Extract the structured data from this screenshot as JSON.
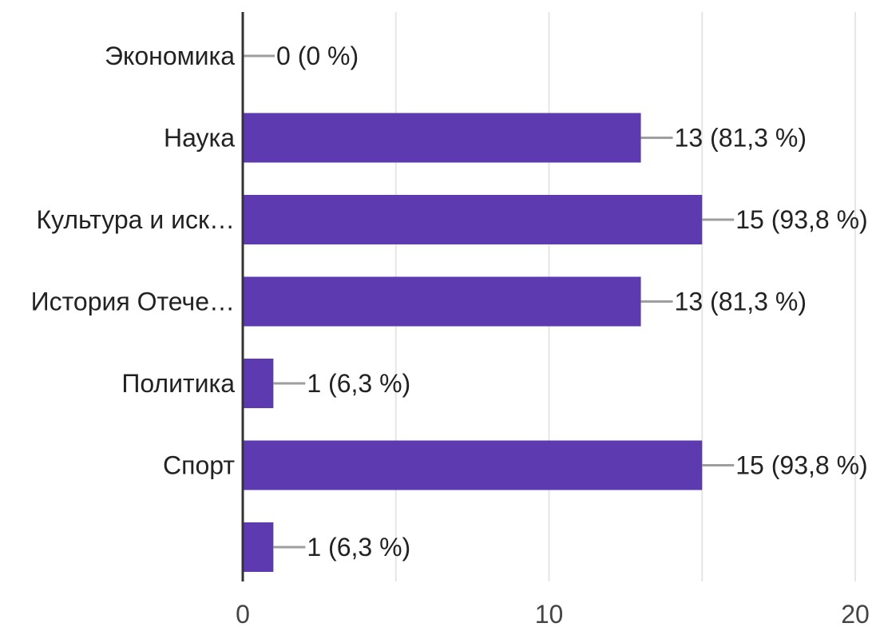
{
  "chart_data": {
    "type": "bar",
    "orientation": "horizontal",
    "categories": [
      "Экономика",
      "Наука",
      "Культура и иск…",
      "История Отече…",
      "Политика",
      "Спорт",
      ""
    ],
    "values": [
      0,
      13,
      15,
      13,
      1,
      15,
      1
    ],
    "data_labels": [
      "0 (0 %)",
      "13 (81,3 %)",
      "15 (93,8 %)",
      "13 (81,3 %)",
      "1 (6,3 %)",
      "15 (93,8 %)",
      "1 (6,3 %)"
    ],
    "xlim": [
      0,
      20
    ],
    "x_ticks": [
      0,
      10,
      20
    ],
    "x_tick_labels": [
      "0",
      "10",
      "20"
    ],
    "grid": true,
    "legend": "none",
    "colors": {
      "bar": "#5e3ab1",
      "grid": "#e6e6e6",
      "axis": "#333333",
      "leader": "#9e9e9e"
    }
  }
}
